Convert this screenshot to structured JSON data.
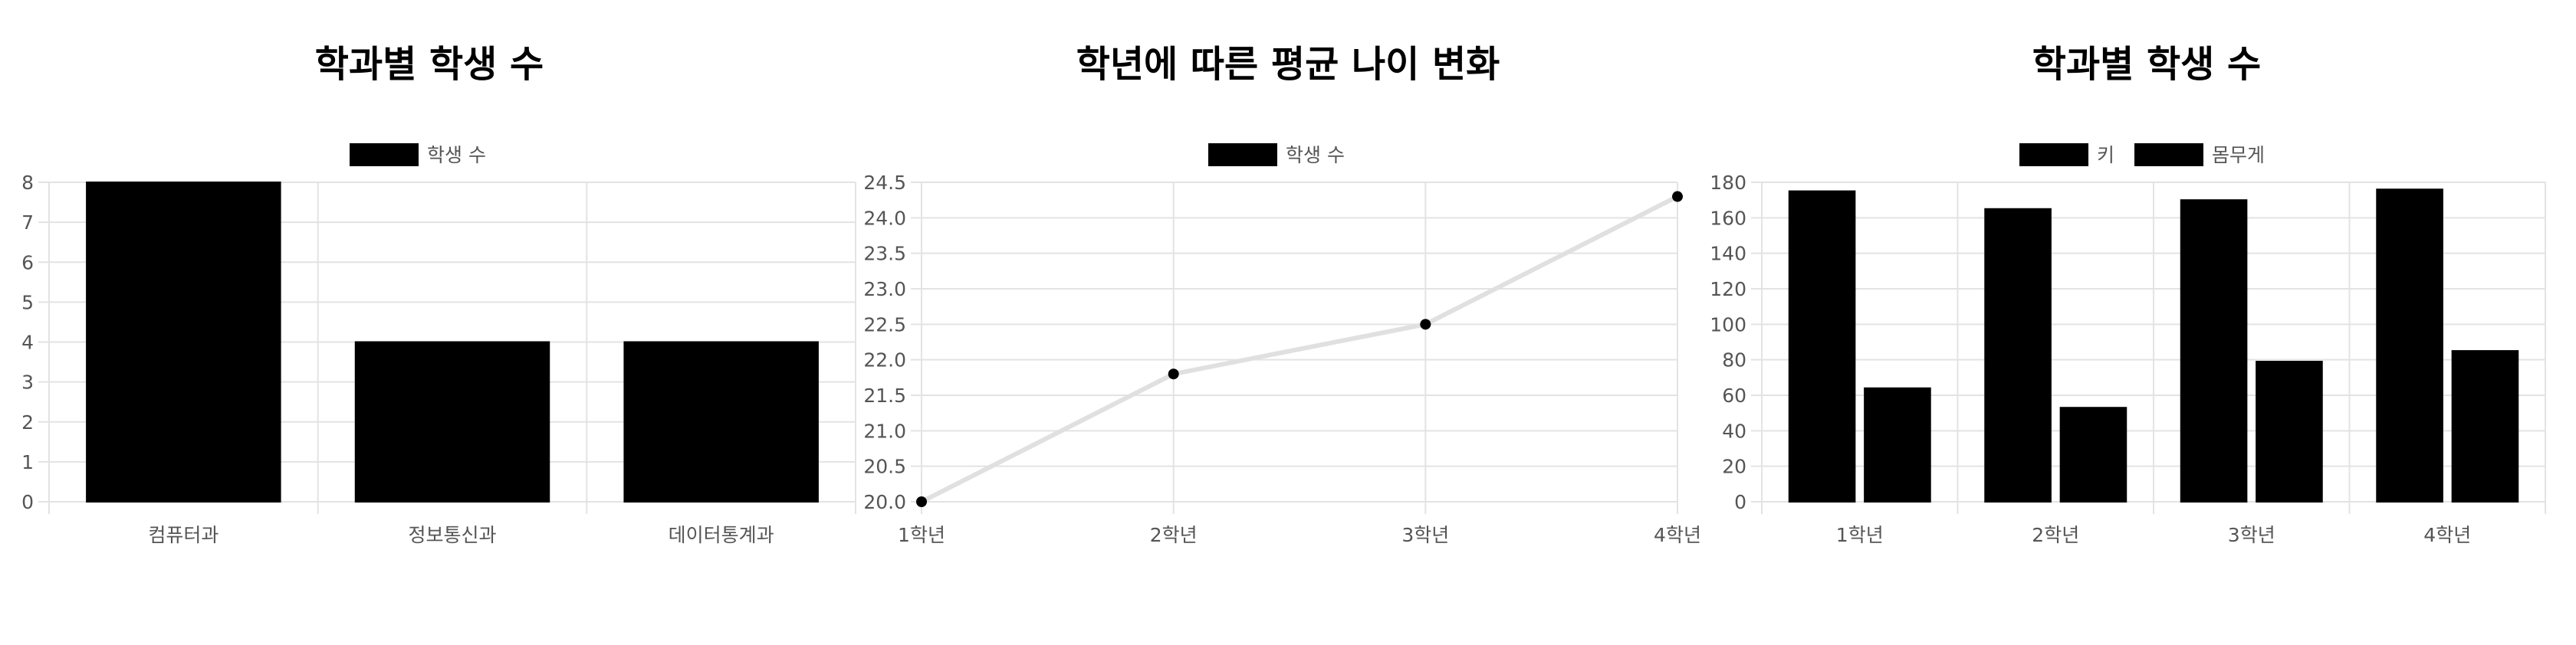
{
  "chart_data": [
    {
      "type": "bar",
      "title": "학과별 학생 수",
      "categories": [
        "컴퓨터과",
        "정보통신과",
        "데이터통계과"
      ],
      "series": [
        {
          "name": "학생 수",
          "values": [
            8,
            4,
            4
          ],
          "color": "#000000"
        }
      ],
      "ylim": [
        0,
        8
      ],
      "yticks": [
        "0",
        "1",
        "2",
        "3",
        "4",
        "5",
        "6",
        "7",
        "8"
      ],
      "grid": true,
      "legend": "top-center"
    },
    {
      "type": "line",
      "title": "학년에 따른 평균 나이 변화",
      "categories": [
        "1학년",
        "2학년",
        "3학년",
        "4학년"
      ],
      "series": [
        {
          "name": "학생 수",
          "values": [
            20.0,
            21.8,
            22.5,
            24.3
          ],
          "color": "#000000",
          "line_color": "#e0e0e0"
        }
      ],
      "ylim": [
        20.0,
        24.5
      ],
      "yticks": [
        "20.0",
        "20.5",
        "21.0",
        "21.5",
        "22.0",
        "22.5",
        "23.0",
        "23.5",
        "24.0",
        "24.5"
      ],
      "grid": true,
      "legend": "top-center"
    },
    {
      "type": "bar",
      "title": "학과별 학생 수",
      "categories": [
        "1학년",
        "2학년",
        "3학년",
        "4학년"
      ],
      "series": [
        {
          "name": "키",
          "values": [
            175,
            165,
            170,
            176
          ],
          "color": "#000000"
        },
        {
          "name": "몸무게",
          "values": [
            64,
            53,
            79,
            85
          ],
          "color": "#000000"
        }
      ],
      "ylim": [
        0,
        180
      ],
      "yticks": [
        "0",
        "20",
        "40",
        "60",
        "80",
        "100",
        "120",
        "140",
        "160",
        "180"
      ],
      "grid": true,
      "legend": "top-center"
    }
  ]
}
